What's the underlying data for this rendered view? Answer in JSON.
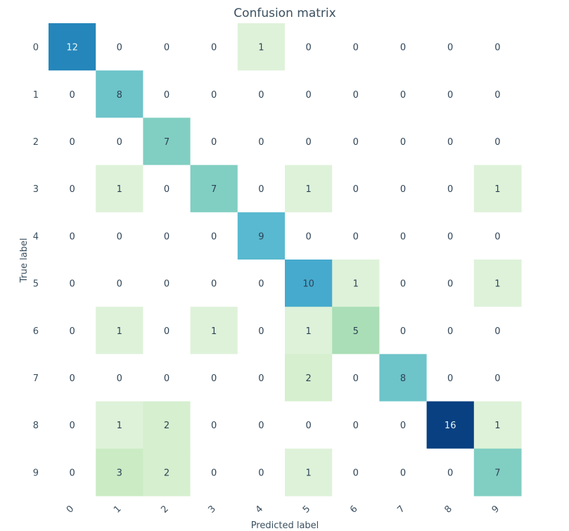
{
  "chart_data": {
    "type": "heatmap",
    "title": "Confusion matrix",
    "xlabel": "Predicted label",
    "ylabel": "True label",
    "x_categories": [
      "0",
      "1",
      "2",
      "3",
      "4",
      "5",
      "6",
      "7",
      "8",
      "9"
    ],
    "y_categories": [
      "0",
      "1",
      "2",
      "3",
      "4",
      "5",
      "6",
      "7",
      "8",
      "9"
    ],
    "matrix": [
      [
        12,
        0,
        0,
        0,
        1,
        0,
        0,
        0,
        0,
        0
      ],
      [
        0,
        8,
        0,
        0,
        0,
        0,
        0,
        0,
        0,
        0
      ],
      [
        0,
        0,
        7,
        0,
        0,
        0,
        0,
        0,
        0,
        0
      ],
      [
        0,
        1,
        0,
        7,
        0,
        1,
        0,
        0,
        0,
        1
      ],
      [
        0,
        0,
        0,
        0,
        9,
        0,
        0,
        0,
        0,
        0
      ],
      [
        0,
        0,
        0,
        0,
        0,
        10,
        1,
        0,
        0,
        1
      ],
      [
        0,
        1,
        0,
        1,
        0,
        1,
        5,
        0,
        0,
        0
      ],
      [
        0,
        0,
        0,
        0,
        0,
        2,
        0,
        8,
        0,
        0
      ],
      [
        0,
        1,
        2,
        0,
        0,
        0,
        0,
        0,
        16,
        1
      ],
      [
        0,
        3,
        2,
        0,
        0,
        1,
        0,
        0,
        0,
        7
      ]
    ],
    "value_range": [
      0,
      16
    ],
    "colormap": "GnBu",
    "grid": false,
    "colorbar": false
  }
}
